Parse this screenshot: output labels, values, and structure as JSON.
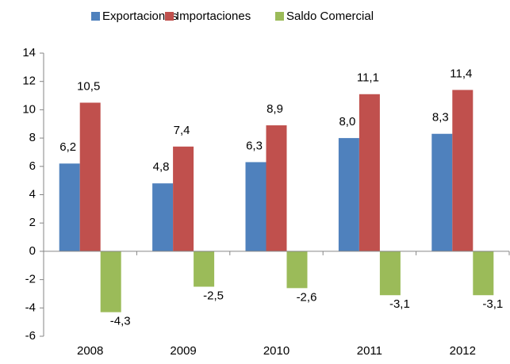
{
  "chart_data": {
    "type": "bar",
    "categories": [
      "2008",
      "2009",
      "2010",
      "2011",
      "2012"
    ],
    "series": [
      {
        "name": "Exportaciones",
        "color": "#4f81bd",
        "values": [
          6.2,
          4.8,
          6.3,
          8.0,
          8.3
        ],
        "value_labels": [
          "6,2",
          "4,8",
          "6,3",
          "8,0",
          "8,3"
        ]
      },
      {
        "name": "Importaciones",
        "color": "#c0504d",
        "values": [
          10.5,
          7.4,
          8.9,
          11.1,
          11.4
        ],
        "value_labels": [
          "10,5",
          "7,4",
          "8,9",
          "11,1",
          "11,4"
        ]
      },
      {
        "name": "Saldo Comercial",
        "color": "#9bbb59",
        "values": [
          -4.3,
          -2.5,
          -2.6,
          -3.1,
          -3.1
        ],
        "value_labels": [
          "-4,3",
          "-2,5",
          "-2,6",
          "-3,1",
          "-3,1"
        ]
      }
    ],
    "ylim": [
      -6,
      14
    ],
    "yticks": [
      -6,
      -4,
      -2,
      0,
      2,
      4,
      6,
      8,
      10,
      12,
      14
    ],
    "legend": "top"
  }
}
